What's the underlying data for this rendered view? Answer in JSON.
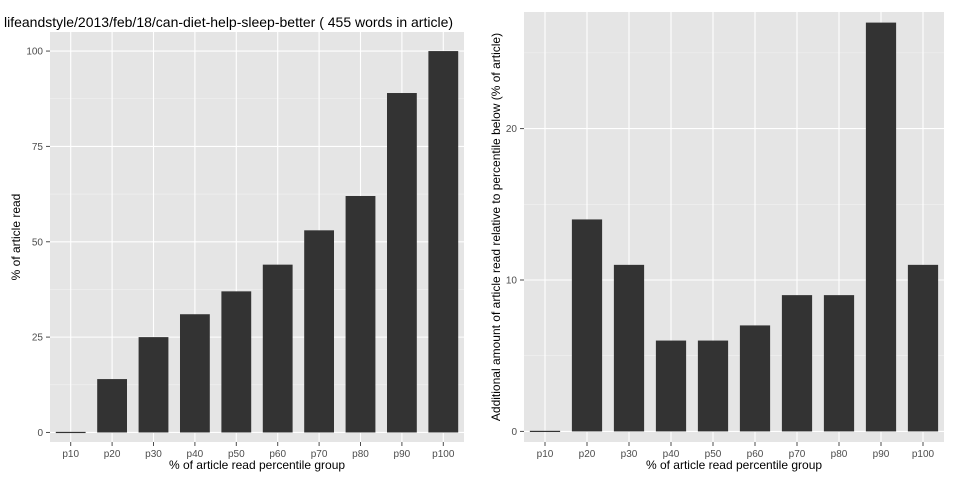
{
  "chart_data": [
    {
      "type": "bar",
      "title": "lifeandstyle/2013/feb/18/can-diet-help-sleep-better ( 455 words in article)",
      "xlabel": "% of article read percentile group",
      "ylabel": "% of article read",
      "categories": [
        "p10",
        "p20",
        "p30",
        "p40",
        "p50",
        "p60",
        "p70",
        "p80",
        "p90",
        "p100"
      ],
      "values": [
        0,
        14,
        25,
        31,
        37,
        44,
        53,
        62,
        89,
        100
      ],
      "ylim": [
        -2.5,
        105
      ],
      "yticks": [
        0,
        25,
        50,
        75,
        100
      ],
      "yminor": [
        12.5,
        37.5,
        62.5,
        87.5
      ],
      "grid": true,
      "bar_color": "#333333",
      "panel_color": "#e5e5e5"
    },
    {
      "type": "bar",
      "xlabel": "% of article read percentile group",
      "ylabel": "Additional amount of article read relative to percentile below (% of article)",
      "categories": [
        "p10",
        "p20",
        "p30",
        "p40",
        "p50",
        "p60",
        "p70",
        "p80",
        "p90",
        "p100"
      ],
      "values": [
        0,
        14,
        11,
        6,
        6,
        7,
        9,
        9,
        27,
        11
      ],
      "ylim": [
        -0.7,
        27.7
      ],
      "yticks": [
        0,
        10,
        20
      ],
      "yminor": [
        5,
        15,
        25
      ],
      "grid": true,
      "bar_color": "#333333",
      "panel_color": "#e5e5e5"
    }
  ]
}
